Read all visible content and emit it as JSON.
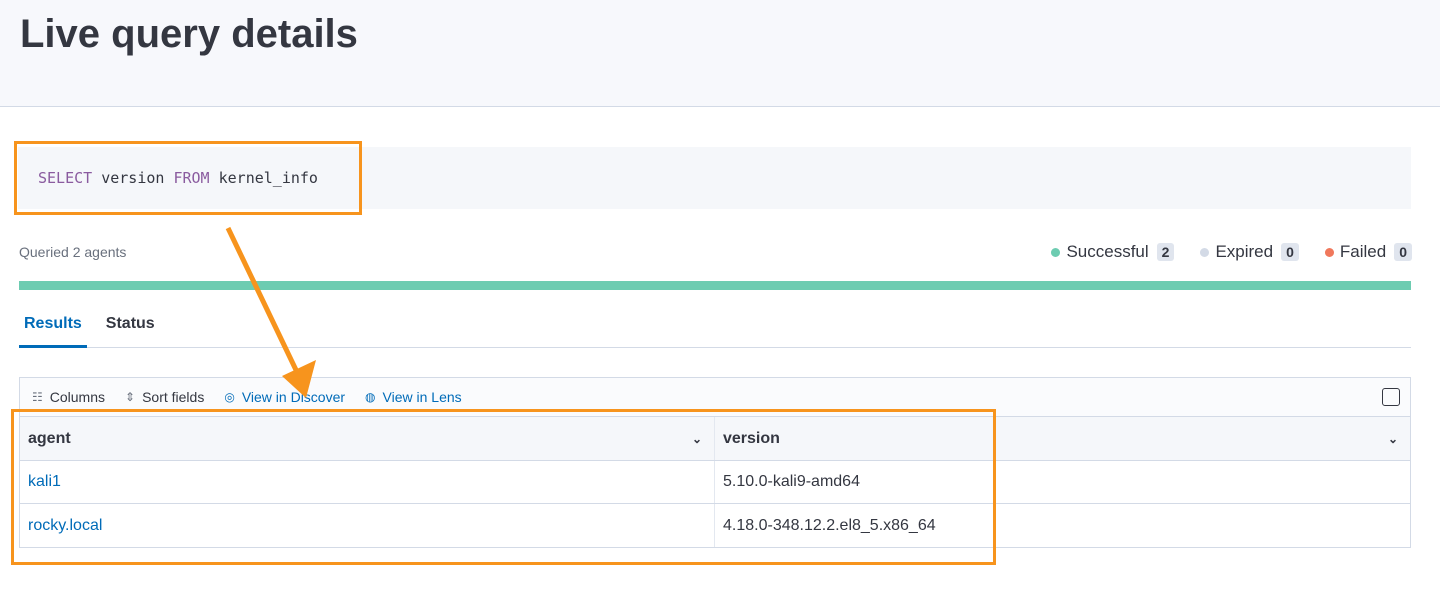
{
  "page": {
    "title": "Live query details"
  },
  "query": {
    "keyword1": "SELECT",
    "part1": " version ",
    "keyword2": "FROM",
    "part2": " kernel_info"
  },
  "summary": {
    "queried": "Queried 2 agents",
    "progress_success_fraction": 1.0,
    "legend": [
      {
        "label": "Successful",
        "count": "2",
        "color": "#6dccb1"
      },
      {
        "label": "Expired",
        "count": "0",
        "color": "#d3dae6"
      },
      {
        "label": "Failed",
        "count": "0",
        "color": "#f0785c"
      }
    ]
  },
  "tabs": [
    {
      "label": "Results",
      "active": true
    },
    {
      "label": "Status",
      "active": false
    }
  ],
  "toolbar": {
    "columns": "Columns",
    "sort": "Sort fields",
    "discover": "View in Discover",
    "lens": "View in Lens"
  },
  "table": {
    "columns": [
      "agent",
      "version"
    ],
    "rows": [
      {
        "agent": "kali1",
        "version": "5.10.0-kali9-amd64"
      },
      {
        "agent": "rocky.local",
        "version": "4.18.0-348.12.2.el8_5.x86_64"
      }
    ]
  },
  "annotation_color": "#f7941d"
}
